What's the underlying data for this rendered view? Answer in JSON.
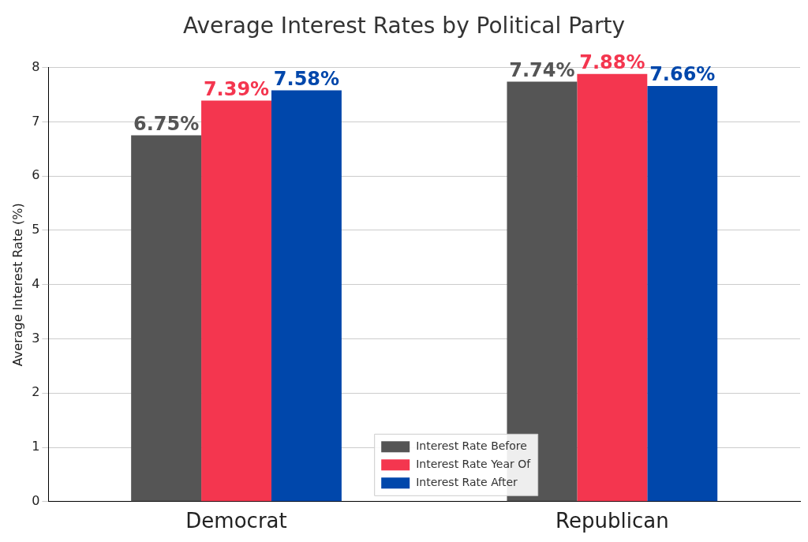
{
  "chart_data": {
    "type": "bar",
    "title": "Average Interest Rates by Political Party",
    "y_label": "Average Interest Rate (%)",
    "categories": [
      "Democrat",
      "Republican"
    ],
    "series": [
      {
        "name": "Interest Rate Before",
        "color": "#555555",
        "values": [
          6.75,
          7.74
        ],
        "value_labels": [
          "6.75%",
          "7.74%"
        ]
      },
      {
        "name": "Interest Rate Year Of",
        "color": "#f4364f",
        "values": [
          7.39,
          7.88
        ],
        "value_labels": [
          "7.39%",
          "7.88%"
        ]
      },
      {
        "name": "Interest Rate After",
        "color": "#0047ab",
        "values": [
          7.58,
          7.66
        ],
        "value_labels": [
          "7.58%",
          "7.66%"
        ]
      }
    ],
    "ylim": [
      0,
      8
    ],
    "yticks": [
      0,
      1,
      2,
      3,
      4,
      5,
      6,
      7,
      8
    ],
    "grid": true,
    "legend": "lower center",
    "data_labels": true
  }
}
